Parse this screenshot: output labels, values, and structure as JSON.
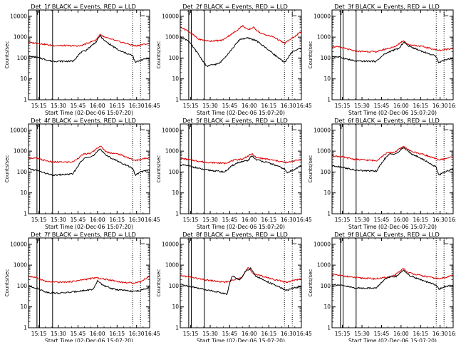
{
  "chart_data": {
    "type": "line",
    "layout": "3x3 grid",
    "ylim": [
      1,
      20000
    ],
    "y_scale": "log",
    "y_ticks": [
      {
        "value": 1,
        "label": "1"
      },
      {
        "value": 10,
        "label": "10"
      },
      {
        "value": 100,
        "label": "100"
      },
      {
        "value": 1000,
        "label": "1000"
      },
      {
        "value": 10000,
        "label": "10000"
      }
    ],
    "x_range_minutes": [
      0,
      93
    ],
    "x_ticks": [
      {
        "min": 8,
        "label": "15:15"
      },
      {
        "min": 23,
        "label": "15:30"
      },
      {
        "min": 38,
        "label": "15:45"
      },
      {
        "min": 53,
        "label": "16:00"
      },
      {
        "min": 68,
        "label": "16:15"
      },
      {
        "min": 83,
        "label": "16:30"
      },
      {
        "min": 98,
        "label": "16:45"
      }
    ],
    "ylabel": "Counts/sec",
    "xlabel": "Start Time (02-Dec-06 15:07:20)",
    "series_legend": {
      "black": "Events",
      "red": "LLD"
    },
    "panels": [
      {
        "title": "Det_1f BLACK = Events, RED = LLD",
        "vlines": [
          {
            "min": 6.5,
            "style": "solid"
          },
          {
            "min": 8.5,
            "style": "solid"
          },
          {
            "min": 18.5,
            "style": "solid"
          },
          {
            "min": 80,
            "style": "dotted"
          },
          {
            "min": 86,
            "style": "dotted"
          }
        ],
        "lld": [
          [
            0,
            550
          ],
          [
            6,
            520
          ],
          [
            18,
            400
          ],
          [
            40,
            380
          ],
          [
            52,
            750
          ],
          [
            55,
            1400
          ],
          [
            58,
            1000
          ],
          [
            70,
            600
          ],
          [
            82,
            380
          ],
          [
            86,
            420
          ],
          [
            93,
            500
          ]
        ],
        "events": [
          [
            0,
            120
          ],
          [
            6,
            110
          ],
          [
            18,
            70
          ],
          [
            34,
            70
          ],
          [
            40,
            180
          ],
          [
            44,
            230
          ],
          [
            52,
            600
          ],
          [
            55,
            1200
          ],
          [
            58,
            700
          ],
          [
            70,
            220
          ],
          [
            80,
            130
          ],
          [
            82,
            60
          ],
          [
            86,
            80
          ],
          [
            93,
            100
          ]
        ]
      },
      {
        "title": "Det_2f BLACK = Events, RED = LLD",
        "vlines": [
          {
            "min": 6.5,
            "style": "solid"
          },
          {
            "min": 8.5,
            "style": "solid"
          },
          {
            "min": 18.5,
            "style": "solid"
          },
          {
            "min": 80,
            "style": "dotted"
          },
          {
            "min": 86,
            "style": "dotted"
          }
        ],
        "lld": [
          [
            0,
            3000
          ],
          [
            6,
            2000
          ],
          [
            14,
            800
          ],
          [
            22,
            650
          ],
          [
            32,
            700
          ],
          [
            42,
            1800
          ],
          [
            48,
            3500
          ],
          [
            52,
            2200
          ],
          [
            56,
            3000
          ],
          [
            62,
            1500
          ],
          [
            72,
            1000
          ],
          [
            80,
            500
          ],
          [
            86,
            900
          ],
          [
            93,
            1800
          ]
        ],
        "events": [
          [
            0,
            1000
          ],
          [
            6,
            700
          ],
          [
            14,
            150
          ],
          [
            20,
            40
          ],
          [
            30,
            55
          ],
          [
            38,
            200
          ],
          [
            46,
            800
          ],
          [
            52,
            900
          ],
          [
            58,
            700
          ],
          [
            66,
            300
          ],
          [
            80,
            60
          ],
          [
            86,
            200
          ],
          [
            93,
            300
          ]
        ]
      },
      {
        "title": "Det_3f BLACK = Events, RED = LLD",
        "vlines": [
          {
            "min": 6.5,
            "style": "solid"
          },
          {
            "min": 8.5,
            "style": "solid"
          },
          {
            "min": 18.5,
            "style": "solid"
          },
          {
            "min": 80,
            "style": "dotted"
          },
          {
            "min": 86,
            "style": "dotted"
          }
        ],
        "lld": [
          [
            0,
            350
          ],
          [
            6,
            330
          ],
          [
            18,
            210
          ],
          [
            34,
            200
          ],
          [
            42,
            280
          ],
          [
            48,
            340
          ],
          [
            55,
            700
          ],
          [
            58,
            450
          ],
          [
            70,
            350
          ],
          [
            82,
            230
          ],
          [
            86,
            250
          ],
          [
            93,
            300
          ]
        ],
        "events": [
          [
            0,
            120
          ],
          [
            6,
            110
          ],
          [
            18,
            70
          ],
          [
            34,
            70
          ],
          [
            40,
            150
          ],
          [
            44,
            200
          ],
          [
            52,
            300
          ],
          [
            55,
            600
          ],
          [
            58,
            400
          ],
          [
            70,
            200
          ],
          [
            80,
            120
          ],
          [
            82,
            60
          ],
          [
            86,
            80
          ],
          [
            93,
            100
          ]
        ]
      },
      {
        "title": "Det_4f BLACK = Events, RED = LLD",
        "vlines": [
          {
            "min": 6.5,
            "style": "solid"
          },
          {
            "min": 8.5,
            "style": "solid"
          },
          {
            "min": 18.5,
            "style": "solid"
          },
          {
            "min": 80,
            "style": "dotted"
          },
          {
            "min": 86,
            "style": "dotted"
          }
        ],
        "lld": [
          [
            0,
            480
          ],
          [
            6,
            450
          ],
          [
            18,
            300
          ],
          [
            34,
            300
          ],
          [
            42,
            700
          ],
          [
            48,
            800
          ],
          [
            55,
            1800
          ],
          [
            60,
            900
          ],
          [
            70,
            700
          ],
          [
            82,
            350
          ],
          [
            86,
            400
          ],
          [
            93,
            500
          ]
        ],
        "events": [
          [
            0,
            140
          ],
          [
            6,
            120
          ],
          [
            18,
            70
          ],
          [
            34,
            80
          ],
          [
            40,
            300
          ],
          [
            44,
            500
          ],
          [
            50,
            600
          ],
          [
            55,
            1300
          ],
          [
            60,
            600
          ],
          [
            70,
            300
          ],
          [
            80,
            150
          ],
          [
            82,
            70
          ],
          [
            86,
            100
          ],
          [
            93,
            130
          ]
        ]
      },
      {
        "title": "Det_5f BLACK = Events, RED = LLD",
        "vlines": [
          {
            "min": 6.5,
            "style": "solid"
          },
          {
            "min": 8.5,
            "style": "solid"
          },
          {
            "min": 18.5,
            "style": "solid"
          },
          {
            "min": 80,
            "style": "dotted"
          },
          {
            "min": 86,
            "style": "dotted"
          }
        ],
        "lld": [
          [
            0,
            450
          ],
          [
            6,
            400
          ],
          [
            18,
            300
          ],
          [
            34,
            260
          ],
          [
            42,
            380
          ],
          [
            48,
            420
          ],
          [
            55,
            750
          ],
          [
            58,
            500
          ],
          [
            70,
            380
          ],
          [
            82,
            280
          ],
          [
            86,
            330
          ],
          [
            93,
            400
          ]
        ],
        "events": [
          [
            0,
            220
          ],
          [
            6,
            200
          ],
          [
            18,
            130
          ],
          [
            34,
            100
          ],
          [
            40,
            200
          ],
          [
            44,
            280
          ],
          [
            52,
            350
          ],
          [
            55,
            600
          ],
          [
            58,
            400
          ],
          [
            70,
            250
          ],
          [
            80,
            140
          ],
          [
            82,
            90
          ],
          [
            86,
            120
          ],
          [
            93,
            200
          ]
        ]
      },
      {
        "title": "Det_6f BLACK = Events, RED = LLD",
        "vlines": [
          {
            "min": 6.5,
            "style": "solid"
          },
          {
            "min": 8.5,
            "style": "solid"
          },
          {
            "min": 18.5,
            "style": "solid"
          },
          {
            "min": 80,
            "style": "dotted"
          },
          {
            "min": 86,
            "style": "dotted"
          }
        ],
        "lld": [
          [
            0,
            600
          ],
          [
            6,
            550
          ],
          [
            18,
            400
          ],
          [
            34,
            350
          ],
          [
            42,
            800
          ],
          [
            48,
            900
          ],
          [
            55,
            1700
          ],
          [
            60,
            1000
          ],
          [
            70,
            700
          ],
          [
            82,
            380
          ],
          [
            86,
            420
          ],
          [
            93,
            550
          ]
        ],
        "events": [
          [
            0,
            200
          ],
          [
            6,
            180
          ],
          [
            18,
            120
          ],
          [
            34,
            110
          ],
          [
            40,
            400
          ],
          [
            44,
            700
          ],
          [
            50,
            800
          ],
          [
            55,
            1500
          ],
          [
            60,
            800
          ],
          [
            70,
            400
          ],
          [
            80,
            170
          ],
          [
            82,
            70
          ],
          [
            86,
            100
          ],
          [
            93,
            140
          ]
        ]
      },
      {
        "title": "Det_7f BLACK = Events, RED = LLD",
        "vlines": [
          {
            "min": 6.5,
            "style": "solid"
          },
          {
            "min": 8.5,
            "style": "solid"
          },
          {
            "min": 18.5,
            "style": "solid"
          },
          {
            "min": 80,
            "style": "dotted"
          },
          {
            "min": 86,
            "style": "dotted"
          }
        ],
        "lld": [
          [
            0,
            300
          ],
          [
            6,
            250
          ],
          [
            14,
            160
          ],
          [
            22,
            150
          ],
          [
            32,
            160
          ],
          [
            42,
            200
          ],
          [
            52,
            250
          ],
          [
            56,
            220
          ],
          [
            62,
            200
          ],
          [
            72,
            150
          ],
          [
            80,
            140
          ],
          [
            86,
            160
          ],
          [
            93,
            300
          ]
        ],
        "events": [
          [
            0,
            100
          ],
          [
            6,
            80
          ],
          [
            14,
            50
          ],
          [
            22,
            45
          ],
          [
            32,
            50
          ],
          [
            42,
            60
          ],
          [
            50,
            70
          ],
          [
            53,
            180
          ],
          [
            58,
            100
          ],
          [
            66,
            70
          ],
          [
            80,
            55
          ],
          [
            86,
            60
          ],
          [
            93,
            90
          ]
        ]
      },
      {
        "title": "Det_8f BLACK = Events, RED = LLD",
        "vlines": [
          {
            "min": 6.5,
            "style": "solid"
          },
          {
            "min": 8.5,
            "style": "solid"
          },
          {
            "min": 18.5,
            "style": "solid"
          },
          {
            "min": 80,
            "style": "dotted"
          },
          {
            "min": 86,
            "style": "dotted"
          }
        ],
        "lld": [
          [
            0,
            320
          ],
          [
            6,
            280
          ],
          [
            18,
            200
          ],
          [
            34,
            150
          ],
          [
            42,
            200
          ],
          [
            48,
            300
          ],
          [
            52,
            750
          ],
          [
            56,
            400
          ],
          [
            70,
            220
          ],
          [
            82,
            150
          ],
          [
            86,
            180
          ],
          [
            93,
            220
          ]
        ],
        "events": [
          [
            0,
            120
          ],
          [
            6,
            100
          ],
          [
            18,
            70
          ],
          [
            30,
            50
          ],
          [
            36,
            40
          ],
          [
            38,
            150
          ],
          [
            40,
            300
          ],
          [
            46,
            200
          ],
          [
            50,
            500
          ],
          [
            54,
            700
          ],
          [
            58,
            300
          ],
          [
            70,
            130
          ],
          [
            82,
            60
          ],
          [
            86,
            80
          ],
          [
            93,
            90
          ]
        ]
      },
      {
        "title": "Det_9f BLACK = Events, RED = LLD",
        "vlines": [
          {
            "min": 6.5,
            "style": "solid"
          },
          {
            "min": 8.5,
            "style": "solid"
          },
          {
            "min": 18.5,
            "style": "solid"
          },
          {
            "min": 80,
            "style": "dotted"
          },
          {
            "min": 86,
            "style": "dotted"
          }
        ],
        "lld": [
          [
            0,
            350
          ],
          [
            6,
            320
          ],
          [
            18,
            250
          ],
          [
            34,
            220
          ],
          [
            42,
            260
          ],
          [
            48,
            320
          ],
          [
            55,
            700
          ],
          [
            58,
            450
          ],
          [
            70,
            300
          ],
          [
            82,
            220
          ],
          [
            86,
            250
          ],
          [
            93,
            330
          ]
        ],
        "events": [
          [
            0,
            120
          ],
          [
            6,
            110
          ],
          [
            18,
            80
          ],
          [
            34,
            80
          ],
          [
            40,
            200
          ],
          [
            44,
            260
          ],
          [
            50,
            300
          ],
          [
            55,
            600
          ],
          [
            58,
            350
          ],
          [
            70,
            180
          ],
          [
            80,
            110
          ],
          [
            82,
            70
          ],
          [
            86,
            90
          ],
          [
            93,
            110
          ]
        ]
      }
    ]
  }
}
